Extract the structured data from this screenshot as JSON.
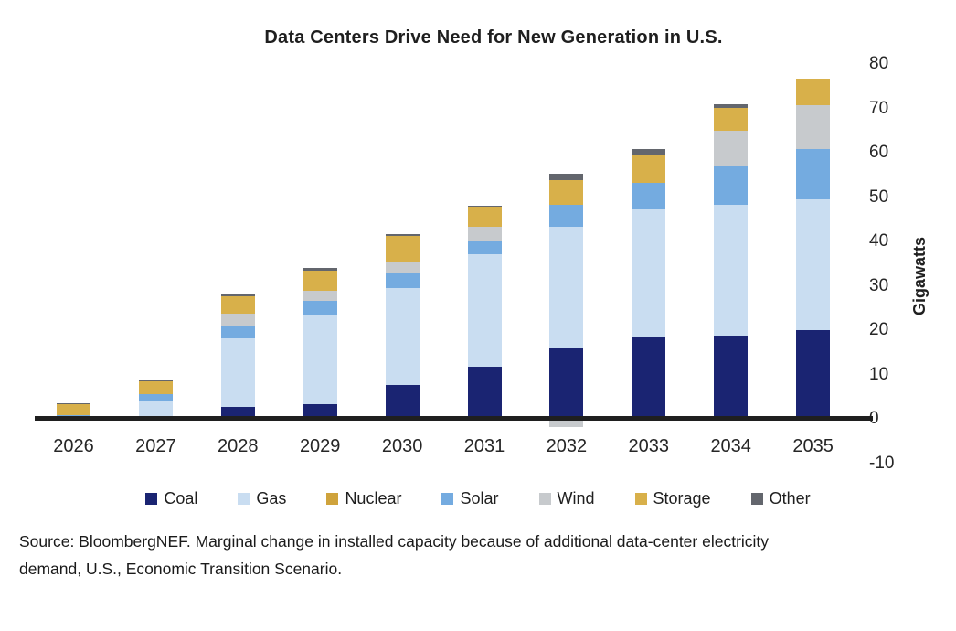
{
  "chart_data": {
    "type": "bar",
    "stacked": true,
    "title": "Data Centers Drive Need for New Generation in U.S.",
    "ylabel": "Gigawatts",
    "xlabel": "",
    "ylim": [
      -10,
      80
    ],
    "yticks": [
      80,
      70,
      60,
      50,
      40,
      30,
      20,
      10,
      0,
      -10
    ],
    "grid": false,
    "legend_position": "bottom",
    "categories": [
      "2026",
      "2027",
      "2028",
      "2029",
      "2030",
      "2031",
      "2032",
      "2033",
      "2034",
      "2035"
    ],
    "series": [
      {
        "name": "Coal",
        "color": "#1a2472",
        "values": [
          0.3,
          0.5,
          2.7,
          3.4,
          7.6,
          11.8,
          16.1,
          18.5,
          18.8,
          20.0
        ]
      },
      {
        "name": "Gas",
        "color": "#c9ddf1",
        "values": [
          0.4,
          3.6,
          15.5,
          20.1,
          21.9,
          25.4,
          27.1,
          28.9,
          29.4,
          29.5
        ]
      },
      {
        "name": "Nuclear",
        "color": "#cfa33c",
        "values": [
          0,
          0,
          0,
          0,
          0,
          0,
          0,
          0,
          0,
          0
        ]
      },
      {
        "name": "Solar",
        "color": "#74abe0",
        "values": [
          0.2,
          1.5,
          2.6,
          3.1,
          3.4,
          2.8,
          5.0,
          5.8,
          8.9,
          11.3
        ]
      },
      {
        "name": "Wind",
        "color": "#c7cacd",
        "values": [
          0,
          0,
          2.9,
          2.2,
          2.6,
          3.3,
          -1.8,
          0,
          7.9,
          10.0
        ]
      },
      {
        "name": "Storage",
        "color": "#d8b04a",
        "values": [
          2.3,
          2.8,
          4.0,
          4.5,
          5.7,
          4.5,
          5.7,
          6.2,
          5.2,
          5.9
        ]
      },
      {
        "name": "Other",
        "color": "#63666d",
        "values": [
          0.3,
          0.4,
          0.6,
          0.7,
          0.5,
          0.2,
          1.4,
          1.4,
          0.7,
          0
        ]
      }
    ]
  },
  "axis": {
    "line_color": "#1f1f1f"
  },
  "source": {
    "line1": "Source: BloombergNEF. Marginal change in installed capacity because of additional data-center electricity",
    "line2": "demand, U.S., Economic Transition Scenario."
  }
}
